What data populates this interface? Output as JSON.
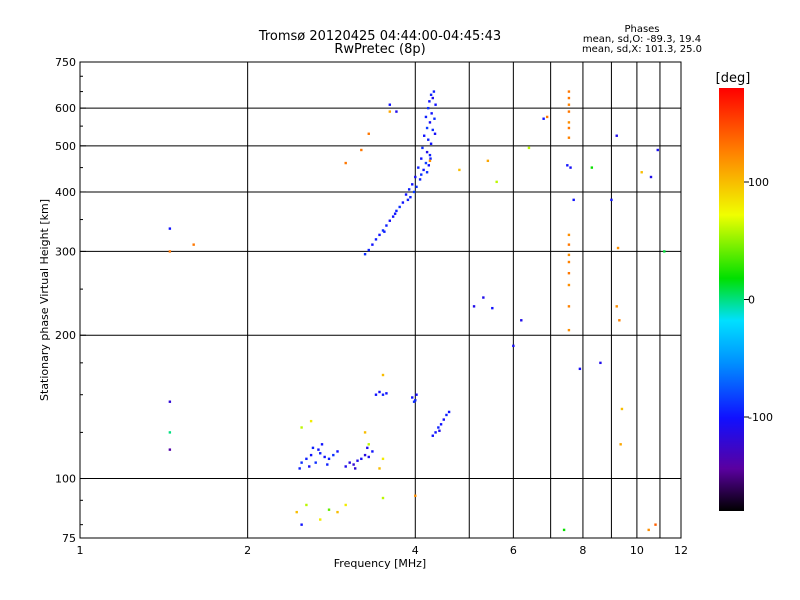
{
  "chart_data": {
    "type": "scatter",
    "title": "Tromsø 20120425 04:44:00-04:45:43",
    "subtitle": "RwPretec (8p)",
    "phases": {
      "heading": "Phases",
      "line1": "mean, sd,O: -89.3, 19.4",
      "line2": "mean, sd,X: 101.3, 25.0"
    },
    "xlabel": "Frequency [MHz]",
    "ylabel": "Stationary phase Virtual Height [km]",
    "x_scale": "log",
    "y_scale": "log",
    "xlim": [
      1,
      12
    ],
    "ylim": [
      75,
      750
    ],
    "x_ticks": [
      1,
      2,
      4,
      6,
      8,
      10,
      12
    ],
    "x_tick_labels": [
      "1",
      "2",
      "4",
      "6",
      "8",
      "10",
      "12"
    ],
    "y_ticks": [
      75,
      100,
      200,
      300,
      400,
      500,
      600,
      750
    ],
    "y_tick_labels": [
      "75",
      "100",
      "200",
      "300",
      "400",
      "500",
      "600",
      "750"
    ],
    "grid": true,
    "colorbar": {
      "unit": "[deg]",
      "range": [
        -180,
        180
      ],
      "ticks": [
        100,
        0,
        -100
      ],
      "tick_labels": [
        "100",
        "0",
        "-100"
      ]
    },
    "points": [
      [
        4.27,
        640,
        -95
      ],
      [
        4.24,
        620,
        -100
      ],
      [
        4.3,
        630,
        -110
      ],
      [
        4.22,
        600,
        -90
      ],
      [
        4.28,
        585,
        -100
      ],
      [
        4.18,
        575,
        -95
      ],
      [
        4.25,
        560,
        -105
      ],
      [
        4.2,
        545,
        -85
      ],
      [
        4.3,
        540,
        -90
      ],
      [
        4.15,
        525,
        -100
      ],
      [
        4.22,
        515,
        -95
      ],
      [
        4.27,
        505,
        -100
      ],
      [
        4.12,
        495,
        -90
      ],
      [
        4.2,
        485,
        -110
      ],
      [
        4.25,
        478,
        -95
      ],
      [
        4.1,
        470,
        -100
      ],
      [
        4.18,
        460,
        -85
      ],
      [
        4.05,
        450,
        -95
      ],
      [
        4.14,
        445,
        -100
      ],
      [
        4.2,
        440,
        -90
      ],
      [
        4.0,
        430,
        -105
      ],
      [
        4.08,
        425,
        -95
      ],
      [
        3.95,
        415,
        -100
      ],
      [
        4.02,
        410,
        -90
      ],
      [
        3.9,
        405,
        -95
      ],
      [
        3.98,
        400,
        -85
      ],
      [
        3.85,
        395,
        -100
      ],
      [
        3.92,
        390,
        -95
      ],
      [
        3.8,
        380,
        -100
      ],
      [
        3.75,
        372,
        -90
      ],
      [
        3.7,
        365,
        -95
      ],
      [
        3.65,
        355,
        -100
      ],
      [
        3.6,
        348,
        -105
      ],
      [
        3.55,
        340,
        -95
      ],
      [
        3.5,
        332,
        -90
      ],
      [
        3.45,
        325,
        -100
      ],
      [
        3.4,
        318,
        -95
      ],
      [
        3.35,
        310,
        -100
      ],
      [
        3.3,
        302,
        -95
      ],
      [
        3.25,
        296,
        -90
      ],
      [
        4.32,
        650,
        -95
      ],
      [
        4.35,
        610,
        -100
      ],
      [
        4.33,
        570,
        -90
      ],
      [
        4.34,
        530,
        -105
      ],
      [
        4.26,
        470,
        -95
      ],
      [
        4.23,
        455,
        -100
      ],
      [
        4.1,
        435,
        -90
      ],
      [
        3.88,
        385,
        -95
      ],
      [
        3.68,
        360,
        -100
      ],
      [
        3.52,
        330,
        -95
      ],
      [
        2.55,
        110,
        -95
      ],
      [
        2.6,
        112,
        -100
      ],
      [
        2.65,
        108,
        -90
      ],
      [
        2.7,
        113,
        -95
      ],
      [
        2.75,
        111,
        -100
      ],
      [
        2.58,
        106,
        -105
      ],
      [
        2.62,
        116,
        -95
      ],
      [
        2.5,
        108,
        -90
      ],
      [
        2.68,
        115,
        -100
      ],
      [
        2.8,
        110,
        -95
      ],
      [
        2.72,
        118,
        -100
      ],
      [
        2.85,
        112,
        -90
      ],
      [
        2.48,
        105,
        -95
      ],
      [
        2.9,
        114,
        -100
      ],
      [
        2.78,
        107,
        -95
      ],
      [
        3.0,
        106,
        -110
      ],
      [
        3.05,
        108,
        -115
      ],
      [
        3.1,
        107,
        -120
      ],
      [
        3.15,
        109,
        -110
      ],
      [
        3.2,
        110,
        -105
      ],
      [
        3.25,
        112,
        -115
      ],
      [
        3.3,
        111,
        -110
      ],
      [
        3.35,
        114,
        -100
      ],
      [
        3.12,
        105,
        -120
      ],
      [
        3.28,
        116,
        -110
      ],
      [
        3.4,
        150,
        -100
      ],
      [
        3.45,
        152,
        -105
      ],
      [
        3.5,
        150,
        -95
      ],
      [
        3.55,
        151,
        -100
      ],
      [
        3.95,
        148,
        -100
      ],
      [
        4.0,
        146,
        -95
      ],
      [
        4.02,
        150,
        -105
      ],
      [
        3.98,
        145,
        -90
      ],
      [
        4.35,
        125,
        -100
      ],
      [
        4.4,
        128,
        -95
      ],
      [
        4.45,
        130,
        -100
      ],
      [
        4.5,
        133,
        -105
      ],
      [
        4.55,
        136,
        -95
      ],
      [
        4.3,
        123,
        -100
      ],
      [
        4.42,
        126,
        -110
      ],
      [
        4.6,
        138,
        -100
      ],
      [
        3.45,
        105,
        100
      ],
      [
        3.5,
        110,
        80
      ],
      [
        3.3,
        118,
        60
      ],
      [
        3.25,
        125,
        100
      ],
      [
        2.5,
        128,
        60
      ],
      [
        2.6,
        132,
        80
      ],
      [
        2.45,
        85,
        100
      ],
      [
        2.55,
        88,
        60
      ],
      [
        2.7,
        82,
        80
      ],
      [
        2.8,
        86,
        40
      ],
      [
        2.9,
        85,
        100
      ],
      [
        3.0,
        88,
        80
      ],
      [
        3.5,
        91,
        60
      ],
      [
        4.0,
        92,
        120
      ],
      [
        2.5,
        80,
        -100
      ],
      [
        3.5,
        165,
        100
      ],
      [
        4.25,
        465,
        120
      ],
      [
        4.8,
        445,
        100
      ],
      [
        5.4,
        465,
        110
      ],
      [
        5.6,
        420,
        60
      ],
      [
        5.3,
        240,
        -110
      ],
      [
        5.5,
        228,
        -100
      ],
      [
        5.1,
        230,
        -110
      ],
      [
        6.0,
        190,
        -105
      ],
      [
        6.2,
        215,
        -110
      ],
      [
        6.8,
        570,
        -100
      ],
      [
        7.5,
        455,
        -100
      ],
      [
        7.6,
        450,
        -105
      ],
      [
        7.7,
        385,
        -100
      ],
      [
        7.9,
        170,
        -105
      ],
      [
        8.6,
        175,
        -110
      ],
      [
        9.0,
        385,
        -100
      ],
      [
        9.2,
        525,
        -110
      ],
      [
        10.6,
        430,
        -110
      ],
      [
        10.9,
        490,
        -105
      ],
      [
        7.55,
        650,
        130
      ],
      [
        7.55,
        630,
        130
      ],
      [
        7.55,
        610,
        125
      ],
      [
        7.55,
        590,
        130
      ],
      [
        7.55,
        560,
        120
      ],
      [
        7.55,
        545,
        130
      ],
      [
        7.55,
        520,
        125
      ],
      [
        7.55,
        325,
        120
      ],
      [
        7.55,
        310,
        130
      ],
      [
        7.55,
        295,
        120
      ],
      [
        7.55,
        285,
        125
      ],
      [
        7.55,
        270,
        130
      ],
      [
        7.55,
        255,
        120
      ],
      [
        7.55,
        230,
        125
      ],
      [
        7.55,
        205,
        120
      ],
      [
        9.2,
        230,
        120
      ],
      [
        9.3,
        215,
        125
      ],
      [
        9.25,
        305,
        120
      ],
      [
        9.4,
        140,
        100
      ],
      [
        9.35,
        118,
        110
      ],
      [
        8.3,
        450,
        20
      ],
      [
        10.2,
        440,
        100
      ],
      [
        10.5,
        78,
        120
      ],
      [
        10.8,
        80,
        140
      ],
      [
        11.2,
        300,
        10
      ],
      [
        1.45,
        335,
        -100
      ],
      [
        1.45,
        145,
        -120
      ],
      [
        1.45,
        125,
        0
      ],
      [
        1.45,
        115,
        -140
      ],
      [
        1.45,
        300,
        130
      ],
      [
        1.6,
        310,
        130
      ],
      [
        6.4,
        495,
        60
      ],
      [
        6.9,
        575,
        130
      ],
      [
        7.4,
        78,
        20
      ],
      [
        3.0,
        460,
        130
      ],
      [
        3.2,
        490,
        130
      ],
      [
        3.6,
        610,
        -100
      ],
      [
        3.7,
        590,
        -110
      ],
      [
        3.6,
        590,
        110
      ],
      [
        3.3,
        530,
        130
      ]
    ]
  }
}
